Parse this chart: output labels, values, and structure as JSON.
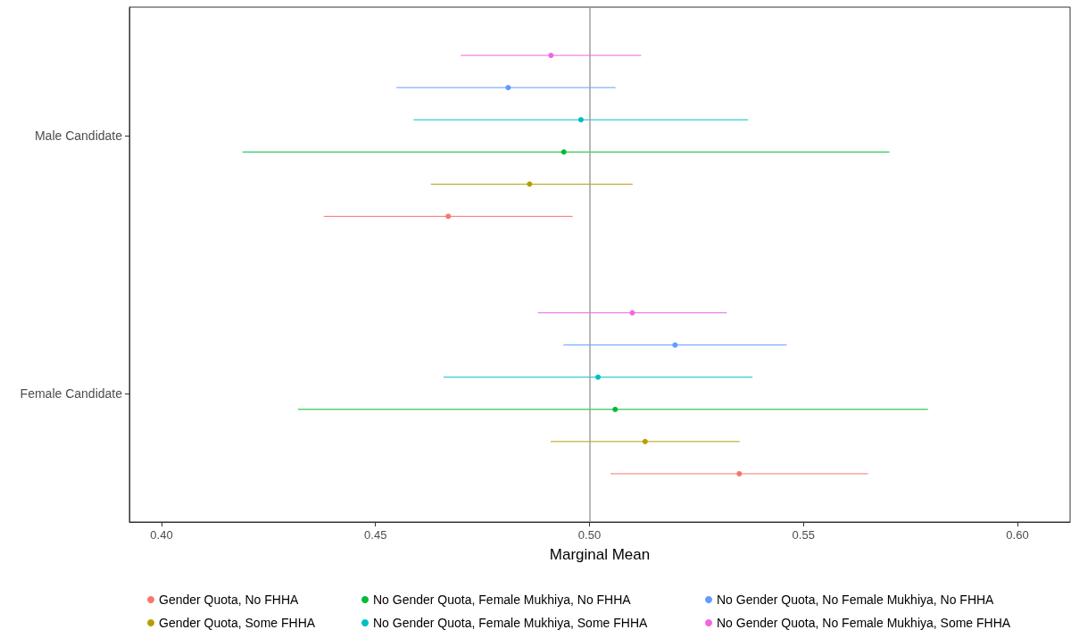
{
  "chart_data": {
    "type": "scatter",
    "orientation": "horizontal",
    "xlabel": "Marginal Mean",
    "categories": [
      "Male Candidate",
      "Female Candidate"
    ],
    "xlim": [
      0.3925,
      0.6123
    ],
    "xticks": [
      {
        "value": 0.4,
        "label": "0.40"
      },
      {
        "value": 0.45,
        "label": "0.45"
      },
      {
        "value": 0.5,
        "label": "0.50"
      },
      {
        "value": 0.55,
        "label": "0.55"
      },
      {
        "value": 0.6,
        "label": "0.60"
      }
    ],
    "series": [
      {
        "name": "Gender Quota, No FHHA",
        "color": "#f8766d",
        "values": [
          0.467,
          0.535
        ],
        "errors": [
          [
            0.438,
            0.496
          ],
          [
            0.505,
            0.565
          ]
        ]
      },
      {
        "name": "Gender Quota, Some FHHA",
        "color": "#b79f00",
        "values": [
          0.486,
          0.513
        ],
        "errors": [
          [
            0.463,
            0.51
          ],
          [
            0.491,
            0.535
          ]
        ]
      },
      {
        "name": "No Gender Quota, Female Mukhiya, No FHHA",
        "color": "#00ba38",
        "values": [
          0.494,
          0.506
        ],
        "errors": [
          [
            0.419,
            0.57
          ],
          [
            0.432,
            0.579
          ]
        ]
      },
      {
        "name": "No Gender Quota, Female Mukhiya, Some FHHA",
        "color": "#00bfc4",
        "values": [
          0.498,
          0.502
        ],
        "errors": [
          [
            0.459,
            0.537
          ],
          [
            0.466,
            0.538
          ]
        ]
      },
      {
        "name": "No Gender Quota, No Female Mukhiya, No FHHA",
        "color": "#619cff",
        "values": [
          0.481,
          0.52
        ],
        "errors": [
          [
            0.455,
            0.506
          ],
          [
            0.494,
            0.546
          ]
        ]
      },
      {
        "name": "No Gender Quota, No Female Mukhiya, Some FHHA",
        "color": "#f564e3",
        "values": [
          0.491,
          0.51
        ],
        "errors": [
          [
            0.47,
            0.512
          ],
          [
            0.488,
            0.532
          ]
        ]
      }
    ],
    "ref_lines": [
      {
        "axis": "x",
        "value": 0.5,
        "color": "#a0a0a0"
      }
    ],
    "grid": false,
    "legend": "bottom",
    "marker": "circle"
  }
}
